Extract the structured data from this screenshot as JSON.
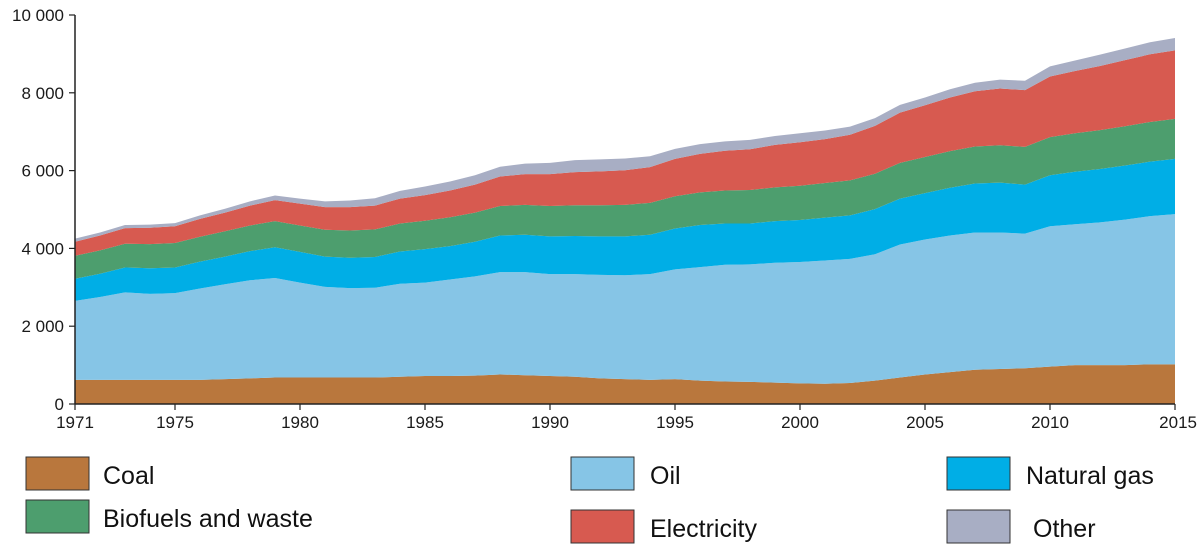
{
  "chart_data": {
    "type": "area",
    "stacked": true,
    "title": "",
    "xlabel": "",
    "ylabel": "",
    "ylim": [
      0,
      10000
    ],
    "yticks": [
      0,
      2000,
      4000,
      6000,
      8000,
      10000
    ],
    "ytick_labels": [
      "0",
      "2 000",
      "4 000",
      "6 000",
      "8 000",
      "10 000"
    ],
    "xlim": [
      1971,
      2015
    ],
    "xticks": [
      1971,
      1975,
      1980,
      1985,
      1990,
      1995,
      2000,
      2005,
      2010,
      2015
    ],
    "xtick_labels": [
      "1971",
      "1975",
      "1980",
      "1985",
      "1990",
      "1995",
      "2000",
      "2005",
      "2010",
      "2015"
    ],
    "legend_position": "bottom",
    "x": [
      1971,
      1972,
      1973,
      1974,
      1975,
      1976,
      1977,
      1978,
      1979,
      1980,
      1981,
      1982,
      1983,
      1984,
      1985,
      1986,
      1987,
      1988,
      1989,
      1990,
      1991,
      1992,
      1993,
      1994,
      1995,
      1996,
      1997,
      1998,
      1999,
      2000,
      2001,
      2002,
      2003,
      2004,
      2005,
      2006,
      2007,
      2008,
      2009,
      2010,
      2011,
      2012,
      2013,
      2014,
      2015
    ],
    "series": [
      {
        "name": "Coal",
        "color": "#b9773d",
        "values": [
          620,
          620,
          620,
          620,
          620,
          620,
          640,
          660,
          680,
          680,
          680,
          680,
          680,
          700,
          720,
          720,
          730,
          760,
          740,
          720,
          700,
          660,
          640,
          620,
          640,
          600,
          580,
          570,
          550,
          530,
          520,
          540,
          600,
          680,
          760,
          820,
          880,
          900,
          920,
          960,
          1000,
          1000,
          1000,
          1020,
          1020
        ]
      },
      {
        "name": "Oil",
        "color": "#86c5e6",
        "values": [
          2030,
          2130,
          2250,
          2210,
          2230,
          2350,
          2440,
          2520,
          2560,
          2440,
          2330,
          2300,
          2310,
          2390,
          2400,
          2480,
          2550,
          2630,
          2650,
          2620,
          2640,
          2660,
          2670,
          2720,
          2820,
          2920,
          3000,
          3020,
          3080,
          3120,
          3170,
          3190,
          3250,
          3420,
          3470,
          3510,
          3530,
          3510,
          3460,
          3610,
          3620,
          3670,
          3740,
          3810,
          3860
        ]
      },
      {
        "name": "Natural gas",
        "color": "#00aee6",
        "values": [
          570,
          600,
          640,
          660,
          660,
          690,
          710,
          750,
          790,
          790,
          780,
          780,
          790,
          830,
          860,
          860,
          890,
          940,
          960,
          970,
          980,
          990,
          1000,
          1010,
          1050,
          1080,
          1060,
          1050,
          1070,
          1080,
          1100,
          1120,
          1160,
          1180,
          1190,
          1230,
          1260,
          1280,
          1260,
          1310,
          1350,
          1370,
          1390,
          1400,
          1420
        ]
      },
      {
        "name": "Biofuels and waste",
        "color": "#4d9e6e",
        "values": [
          590,
          600,
          610,
          620,
          630,
          640,
          650,
          660,
          670,
          680,
          690,
          700,
          710,
          720,
          730,
          740,
          750,
          760,
          770,
          780,
          790,
          800,
          810,
          820,
          830,
          840,
          850,
          860,
          870,
          880,
          890,
          900,
          910,
          920,
          930,
          940,
          950,
          960,
          970,
          980,
          990,
          1000,
          1010,
          1020,
          1030
        ]
      },
      {
        "name": "Electricity",
        "color": "#d75a50",
        "values": [
          360,
          380,
          400,
          420,
          430,
          460,
          480,
          510,
          540,
          560,
          580,
          600,
          610,
          640,
          660,
          690,
          720,
          760,
          790,
          820,
          850,
          870,
          890,
          920,
          960,
          990,
          1020,
          1050,
          1090,
          1120,
          1130,
          1170,
          1230,
          1290,
          1330,
          1380,
          1420,
          1460,
          1460,
          1560,
          1600,
          1650,
          1700,
          1740,
          1760
        ]
      },
      {
        "name": "Other",
        "color": "#a8aec4",
        "values": [
          80,
          80,
          80,
          80,
          80,
          90,
          100,
          110,
          120,
          130,
          150,
          170,
          190,
          200,
          220,
          230,
          240,
          250,
          270,
          290,
          310,
          310,
          300,
          280,
          260,
          250,
          240,
          240,
          230,
          230,
          220,
          210,
          200,
          200,
          200,
          210,
          220,
          230,
          240,
          260,
          270,
          290,
          300,
          310,
          320
        ]
      }
    ],
    "legend": {
      "coal": "Coal",
      "oil": "Oil",
      "natural_gas": "Natural gas",
      "biofuels": "Biofuels and waste",
      "electricity": "Electricity",
      "other": "Other"
    }
  }
}
